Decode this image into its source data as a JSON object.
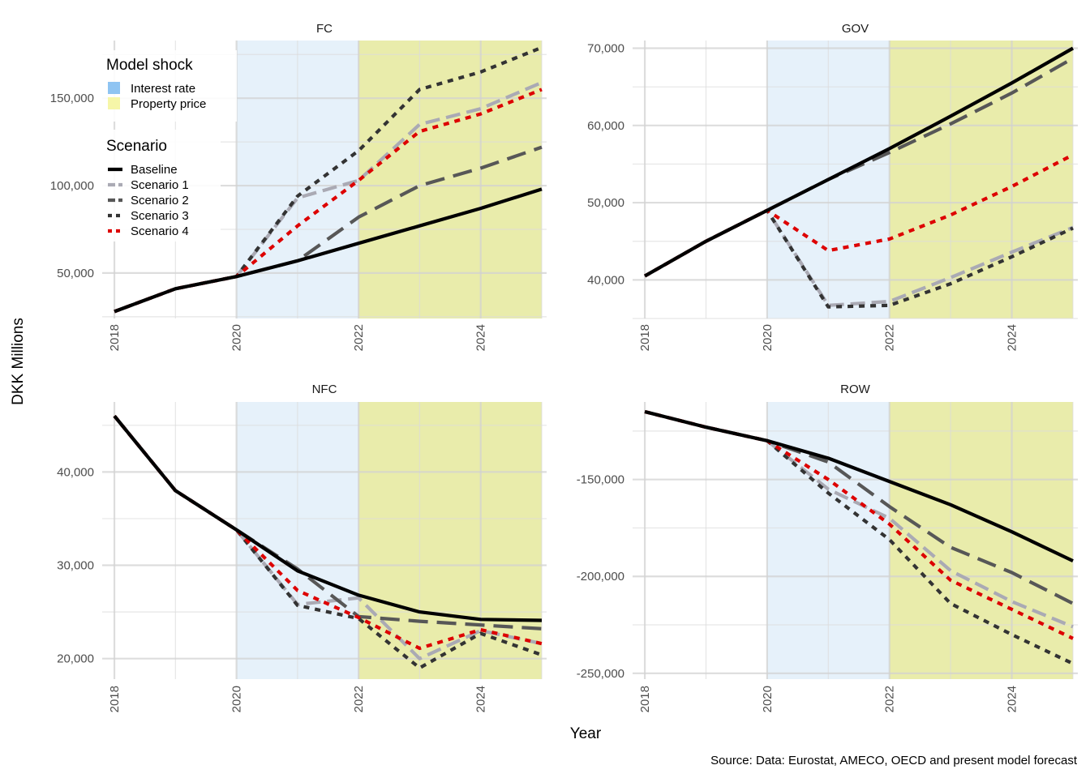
{
  "chart_data": {
    "type": "line",
    "ylabel": "DKK Millions",
    "xlabel": "Year",
    "caption": "Source: Data: Eurostat, AMECO, OECD and present model forecast",
    "legend": {
      "placement": "top-left inside FC panel",
      "shock_title": "Model shock",
      "shocks": [
        {
          "name": "Interest rate",
          "color": "#8fc4f2"
        },
        {
          "name": "Property price",
          "color": "#f6f6a8"
        }
      ],
      "scenario_title": "Scenario",
      "scenarios": [
        {
          "name": "Baseline",
          "color": "#000000"
        },
        {
          "name": "Scenario 1",
          "color": "#aaaab4"
        },
        {
          "name": "Scenario 2",
          "color": "#575757"
        },
        {
          "name": "Scenario 3",
          "color": "#333333"
        },
        {
          "name": "Scenario 4",
          "color": "#dd0000"
        }
      ]
    },
    "shock_periods": [
      {
        "name": "Interest rate",
        "from": 2020,
        "to": 2022,
        "fill": "#d8e9f8",
        "opacity": 0.65
      },
      {
        "name": "Property price",
        "from": 2022,
        "to": 2025,
        "fill": "#e2e68f",
        "opacity": 0.75
      }
    ],
    "x": [
      2018,
      2019,
      2020,
      2021,
      2022,
      2023,
      2024,
      2025
    ],
    "x_ticks": [
      "2018",
      "2020",
      "2022",
      "2024"
    ],
    "panels": [
      {
        "title": "FC",
        "ylim": [
          24000,
          183000
        ],
        "y_ticks": [
          50000,
          100000,
          150000
        ],
        "y_tick_labels": [
          "50,000",
          "100,000",
          "150,000"
        ],
        "series": [
          {
            "name": "Scenario 1",
            "values": [
              28000,
              41000,
              48000,
              93000,
              103000,
              135000,
              144000,
              159000
            ]
          },
          {
            "name": "Scenario 2",
            "values": [
              28000,
              41000,
              48000,
              57000,
              82000,
              100000,
              110000,
              122000
            ]
          },
          {
            "name": "Scenario 3",
            "values": [
              28000,
              41000,
              48000,
              94000,
              120000,
              155000,
              165000,
              179000
            ]
          },
          {
            "name": "Scenario 4",
            "values": [
              28000,
              41000,
              48000,
              77000,
              103000,
              131000,
              141000,
              155000
            ]
          },
          {
            "name": "Baseline",
            "values": [
              28000,
              41000,
              48000,
              57000,
              67000,
              77000,
              87000,
              98000
            ]
          }
        ]
      },
      {
        "title": "GOV",
        "ylim": [
          35000,
          71000
        ],
        "y_ticks": [
          40000,
          50000,
          60000,
          70000
        ],
        "y_tick_labels": [
          "40,000",
          "50,000",
          "60,000",
          "70,000"
        ],
        "series": [
          {
            "name": "Scenario 1",
            "values": [
              40500,
              45000,
              49000,
              36700,
              37200,
              40300,
              43600,
              46800
            ]
          },
          {
            "name": "Scenario 2",
            "values": [
              40500,
              45000,
              49000,
              53000,
              56500,
              60200,
              64200,
              68700
            ]
          },
          {
            "name": "Scenario 3",
            "values": [
              40500,
              45000,
              49000,
              36500,
              36700,
              39500,
              43000,
              46700
            ]
          },
          {
            "name": "Scenario 4",
            "values": [
              40500,
              45000,
              49000,
              43800,
              45300,
              48400,
              52100,
              56200
            ]
          },
          {
            "name": "Baseline",
            "values": [
              40500,
              45000,
              49000,
              53000,
              57000,
              61200,
              65500,
              70000
            ]
          }
        ]
      },
      {
        "title": "NFC",
        "ylim": [
          17800,
          47500
        ],
        "y_ticks": [
          20000,
          30000,
          40000
        ],
        "y_tick_labels": [
          "20,000",
          "30,000",
          "40,000"
        ],
        "series": [
          {
            "name": "Scenario 1",
            "values": [
              46000,
              38000,
              33800,
              25800,
              26500,
              20000,
              23000,
              21600
            ]
          },
          {
            "name": "Scenario 2",
            "values": [
              46000,
              38000,
              33800,
              29600,
              24500,
              24000,
              23600,
              23200
            ]
          },
          {
            "name": "Scenario 3",
            "values": [
              46000,
              38000,
              33800,
              25700,
              24300,
              19000,
              22700,
              20400
            ]
          },
          {
            "name": "Scenario 4",
            "values": [
              46000,
              38000,
              33800,
              27300,
              24400,
              21100,
              23100,
              21600
            ]
          },
          {
            "name": "Baseline",
            "values": [
              46000,
              38000,
              33800,
              29400,
              26800,
              25000,
              24200,
              24100
            ]
          }
        ]
      },
      {
        "title": "ROW",
        "ylim": [
          -253000,
          -110000
        ],
        "y_ticks": [
          -250000,
          -200000,
          -150000
        ],
        "y_tick_labels": [
          "-250,000",
          "-200,000",
          "-150,000"
        ],
        "series": [
          {
            "name": "Scenario 1",
            "values": [
              -115000,
              -123000,
              -130000,
              -155000,
              -170000,
              -197000,
              -213000,
              -226000
            ]
          },
          {
            "name": "Scenario 2",
            "values": [
              -115000,
              -123000,
              -130000,
              -141000,
              -164000,
              -185000,
              -198000,
              -214000
            ]
          },
          {
            "name": "Scenario 3",
            "values": [
              -115000,
              -123000,
              -130000,
              -157000,
              -181000,
              -214000,
              -230000,
              -245000
            ]
          },
          {
            "name": "Scenario 4",
            "values": [
              -115000,
              -123000,
              -130000,
              -150000,
              -173000,
              -202000,
              -217000,
              -232000
            ]
          },
          {
            "name": "Baseline",
            "values": [
              -115000,
              -123000,
              -130000,
              -139000,
              -151000,
              -163000,
              -177000,
              -192000
            ]
          }
        ]
      }
    ]
  }
}
